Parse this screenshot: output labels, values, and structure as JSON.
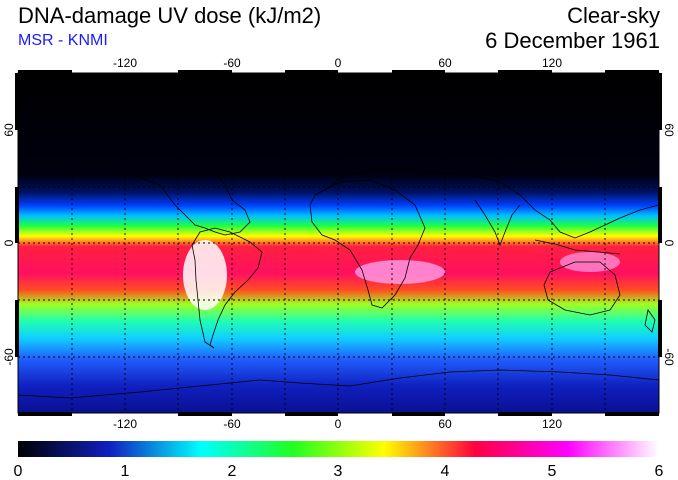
{
  "header": {
    "title": "DNA-damage UV dose (kJ/m2)",
    "subtitle": "MSR - KNMI",
    "mode": "Clear-sky",
    "date": "6 December 1961"
  },
  "map": {
    "lon_ticks": [
      -120,
      -60,
      0,
      60,
      120
    ],
    "lat_ticks": [
      60,
      0,
      -60
    ],
    "lon_range": [
      -180,
      180
    ],
    "lat_range": [
      -90,
      90
    ]
  },
  "colorbar": {
    "min": 0,
    "max": 6,
    "tick_values": [
      0,
      1,
      2,
      3,
      4,
      5,
      6
    ],
    "colors": [
      "#000000",
      "#1020c0",
      "#00ffff",
      "#20ff20",
      "#ffff00",
      "#ff0040",
      "#ff00ff",
      "#ffffff"
    ]
  }
}
